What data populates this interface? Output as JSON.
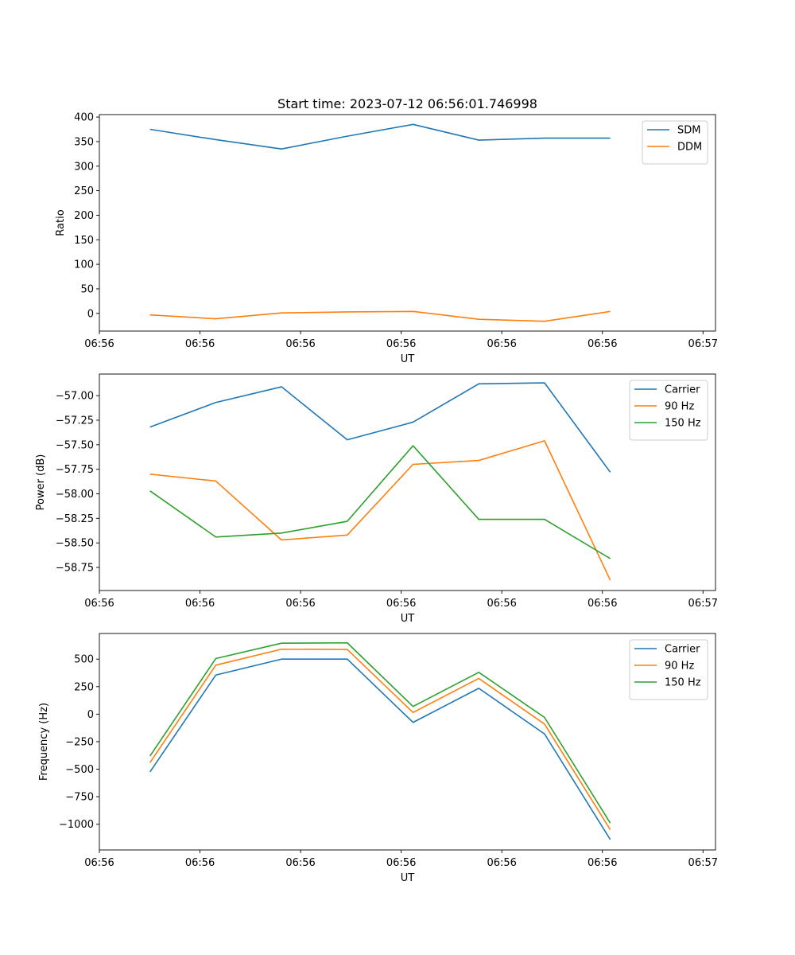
{
  "chart_data": [
    {
      "type": "line",
      "title": "Start time: 2023-07-12 06:56:01.746998",
      "xlabel": "UT",
      "ylabel": "Ratio",
      "x": [
        0,
        1,
        2,
        3,
        4,
        5,
        6,
        7
      ],
      "xlim": [
        -0.77,
        8.6
      ],
      "xtick_positions": [
        -0.77,
        0.76,
        2.29,
        3.82,
        5.35,
        6.88,
        8.41
      ],
      "xtick_labels": [
        "06:56",
        "06:56",
        "06:56",
        "06:56",
        "06:56",
        "06:56",
        "06:57"
      ],
      "ylim": [
        -36,
        405
      ],
      "yticks": [
        0,
        50,
        100,
        150,
        200,
        250,
        300,
        350,
        400
      ],
      "ytick_labels": [
        "0",
        "50",
        "100",
        "150",
        "200",
        "250",
        "300",
        "350",
        "400"
      ],
      "legend": "top-right",
      "series": [
        {
          "name": "SDM",
          "color": "#1f77b4",
          "values": [
            375,
            354,
            335,
            361,
            385,
            353,
            357,
            357
          ]
        },
        {
          "name": "DDM",
          "color": "#ff7f0e",
          "values": [
            -3,
            -11,
            1,
            3,
            4,
            -12,
            -16,
            4
          ]
        }
      ]
    },
    {
      "type": "line",
      "title": "",
      "xlabel": "UT",
      "ylabel": "Power (dB)",
      "x": [
        0,
        1,
        2,
        3,
        4,
        5,
        6,
        7
      ],
      "xlim": [
        -0.77,
        8.6
      ],
      "xtick_positions": [
        -0.77,
        0.76,
        2.29,
        3.82,
        5.35,
        6.88,
        8.41
      ],
      "xtick_labels": [
        "06:56",
        "06:56",
        "06:56",
        "06:56",
        "06:56",
        "06:56",
        "06:57"
      ],
      "ylim": [
        -58.985,
        -56.78
      ],
      "yticks": [
        -58.75,
        -58.5,
        -58.25,
        -58.0,
        -57.75,
        -57.5,
        -57.25,
        -57.0
      ],
      "ytick_labels": [
        "−58.75",
        "−58.50",
        "−58.25",
        "−58.00",
        "−57.75",
        "−57.50",
        "−57.25",
        "−57.00"
      ],
      "legend": "top-right",
      "series": [
        {
          "name": "Carrier",
          "color": "#1f77b4",
          "values": [
            -57.32,
            -57.07,
            -56.91,
            -57.45,
            -57.27,
            -56.88,
            -56.87,
            -57.78
          ]
        },
        {
          "name": "90 Hz",
          "color": "#ff7f0e",
          "values": [
            -57.8,
            -57.87,
            -58.47,
            -58.42,
            -57.7,
            -57.66,
            -57.46,
            -58.88
          ]
        },
        {
          "name": "150 Hz",
          "color": "#2ca02c",
          "values": [
            -57.97,
            -58.44,
            -58.4,
            -58.28,
            -57.51,
            -58.26,
            -58.26,
            -58.66
          ]
        }
      ]
    },
    {
      "type": "line",
      "title": "",
      "xlabel": "UT",
      "ylabel": "Frequency (Hz)",
      "x": [
        0,
        1,
        2,
        3,
        4,
        5,
        6,
        7
      ],
      "xlim": [
        -0.77,
        8.6
      ],
      "xtick_positions": [
        -0.77,
        0.76,
        2.29,
        3.82,
        5.35,
        6.88,
        8.41
      ],
      "xtick_labels": [
        "06:56",
        "06:56",
        "06:56",
        "06:56",
        "06:56",
        "06:56",
        "06:57"
      ],
      "ylim": [
        -1234,
        733
      ],
      "yticks": [
        -1000,
        -750,
        -500,
        -250,
        0,
        250,
        500
      ],
      "ytick_labels": [
        "−1000",
        "−750",
        "−500",
        "−250",
        "0",
        "250",
        "500"
      ],
      "legend": "top-right",
      "series": [
        {
          "name": "Carrier",
          "color": "#1f77b4",
          "values": [
            -525,
            355,
            500,
            500,
            -75,
            235,
            -180,
            -1140
          ]
        },
        {
          "name": "90 Hz",
          "color": "#ff7f0e",
          "values": [
            -440,
            445,
            590,
            588,
            15,
            325,
            -90,
            -1050
          ]
        },
        {
          "name": "150 Hz",
          "color": "#2ca02c",
          "values": [
            -380,
            505,
            645,
            648,
            70,
            380,
            -30,
            -990
          ]
        }
      ]
    }
  ]
}
